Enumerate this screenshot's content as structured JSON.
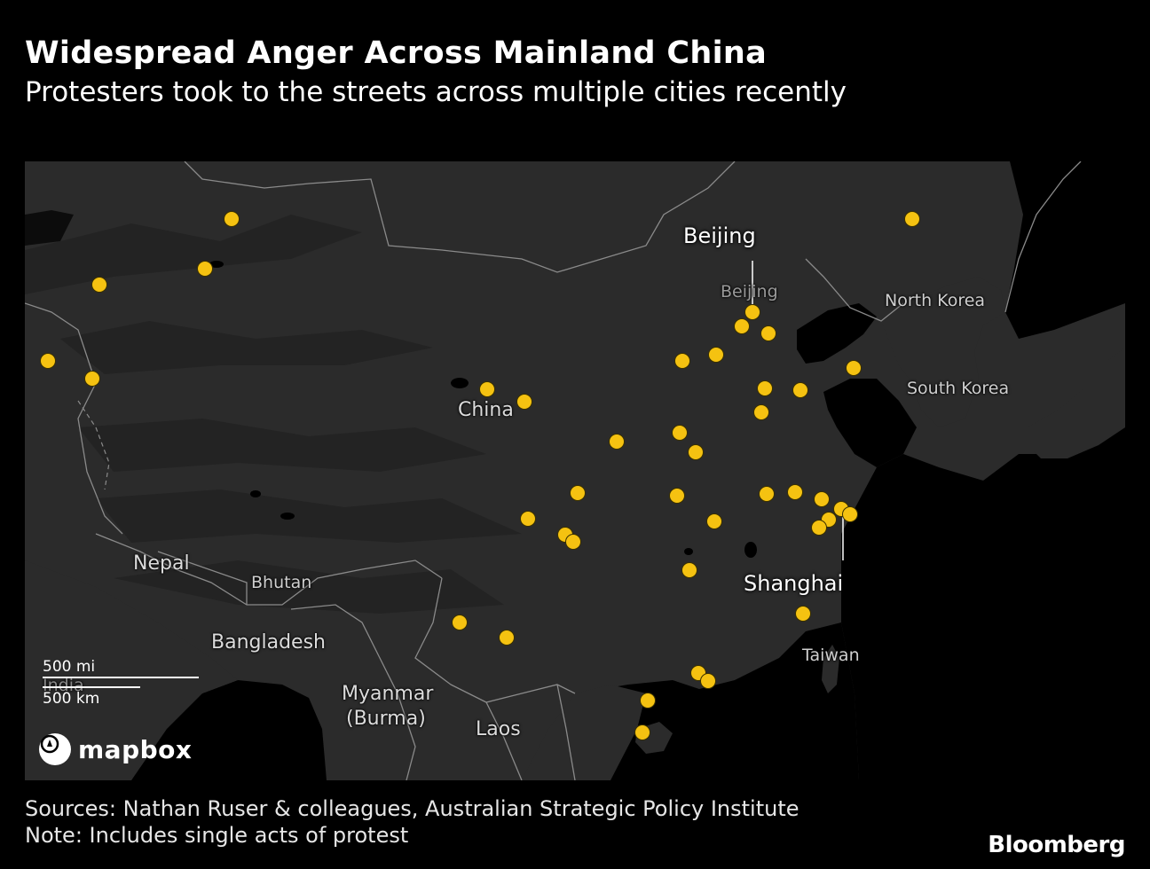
{
  "header": {
    "title": "Widespread Anger Across Mainland China",
    "subtitle": "Protesters took to the streets across multiple cities recently"
  },
  "map": {
    "country_labels": {
      "china": "China",
      "nepal": "Nepal",
      "bhutan": "Bhutan",
      "bangladesh": "Bangladesh",
      "india": "India",
      "myanmar": "Myanmar",
      "burma": "(Burma)",
      "laos": "Laos",
      "taiwan": "Taiwan",
      "north_korea": "North Korea",
      "south_korea": "South Korea"
    },
    "city_label": "Beijing",
    "callouts": {
      "beijing": "Beijing",
      "shanghai": "Shanghai"
    },
    "scale": {
      "mi": "500 mi",
      "km": "500 km"
    },
    "attribution": "mapbox",
    "marker_color": "#F5C211",
    "land_color": "#2b2b2b",
    "water_color": "#000000"
  },
  "footer": {
    "source": "Sources: Nathan Ruser & colleagues, Australian Strategic Policy Institute",
    "note": "Note: Includes single acts of protest",
    "brand": "Bloomberg"
  }
}
